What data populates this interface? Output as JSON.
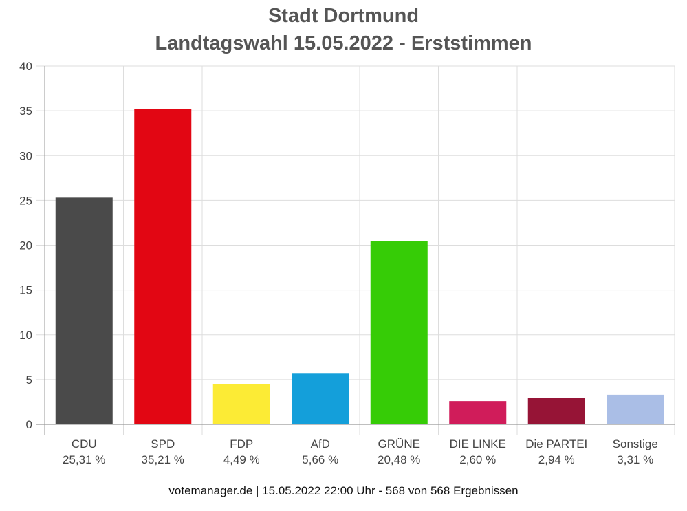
{
  "chart_data": {
    "type": "bar",
    "title": [
      "Stadt Dortmund",
      "Landtagswahl 15.05.2022  - Erststimmen"
    ],
    "xlabel": "",
    "ylabel": "",
    "ylim": [
      0,
      40
    ],
    "yticks": [
      0,
      5,
      10,
      15,
      20,
      25,
      30,
      35,
      40
    ],
    "grid": true,
    "categories": [
      "CDU",
      "SPD",
      "FDP",
      "AfD",
      "GRÜNE",
      "DIE LINKE",
      "Die PARTEI",
      "Sonstige"
    ],
    "values": [
      25.31,
      35.21,
      4.49,
      5.66,
      20.48,
      2.6,
      2.94,
      3.31
    ],
    "value_labels": [
      "25,31 %",
      "35,21 %",
      "4,49 %",
      "5,66 %",
      "20,48 %",
      "2,60 %",
      "2,94 %",
      "3,31 %"
    ],
    "colors": [
      "#4a4a4a",
      "#e20613",
      "#fceb35",
      "#149fda",
      "#36cc06",
      "#d01c5a",
      "#961436",
      "#aabee6"
    ]
  },
  "footer": "votemanager.de | 15.05.2022 22:00 Uhr - 568 von 568 Ergebnissen"
}
